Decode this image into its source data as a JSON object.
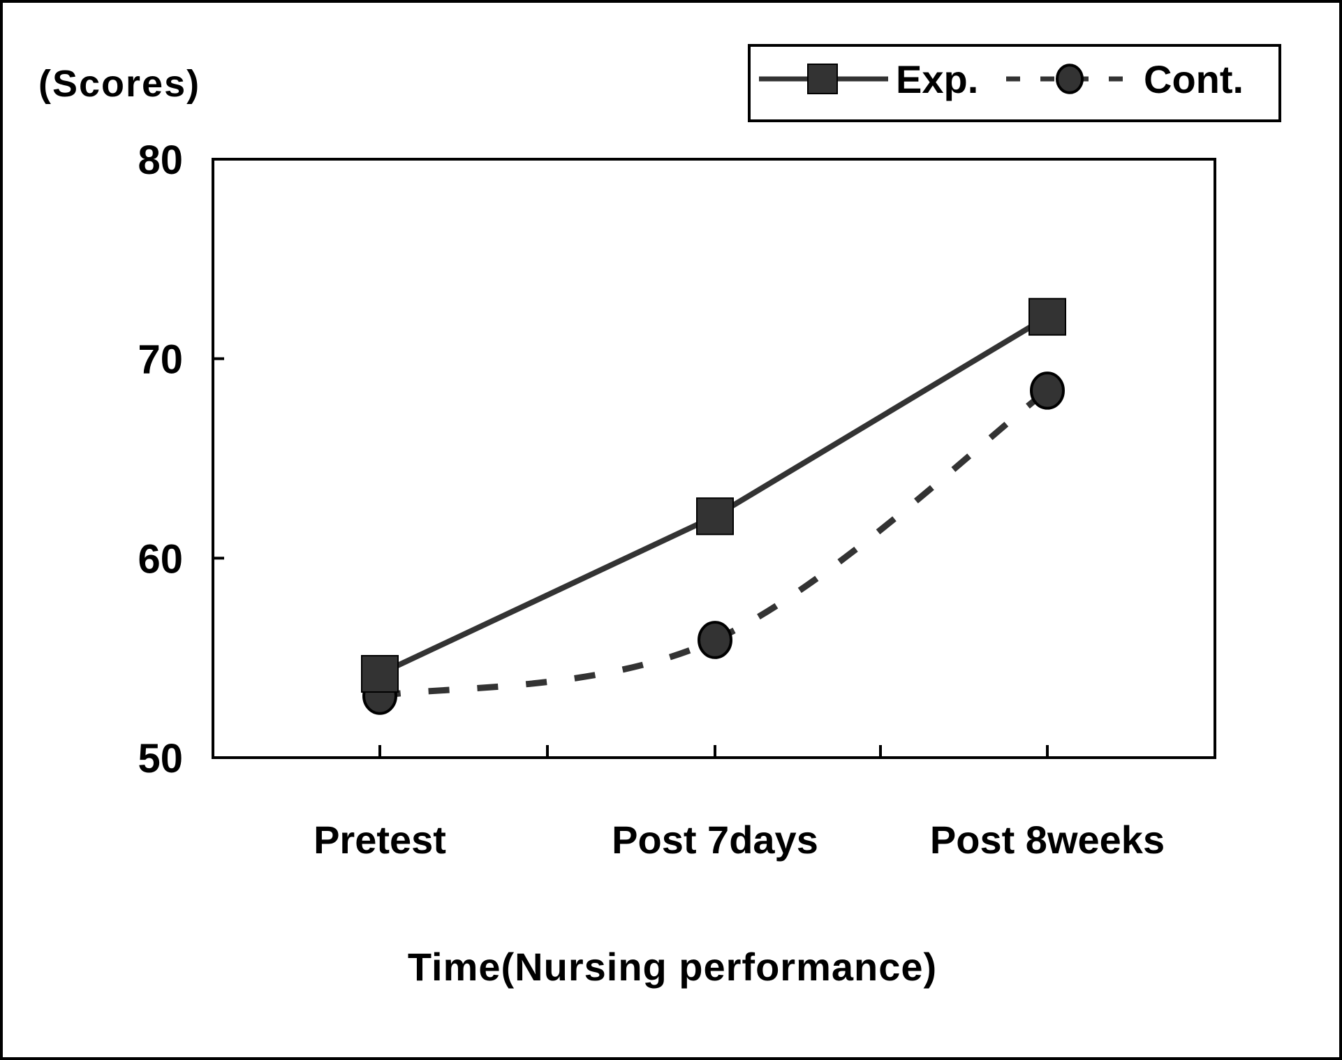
{
  "chart_data": {
    "type": "line",
    "title": "",
    "ylabel": "(Scores)",
    "xlabel": "Time(Nursing performance)",
    "categories": [
      "Pretest",
      "Post 7days",
      "Post 8weeks"
    ],
    "ylim": [
      50,
      80
    ],
    "yticks": [
      "50",
      "60",
      "70",
      "80"
    ],
    "grid": false,
    "legend_placement": "top-right",
    "series": [
      {
        "name": "Exp.",
        "values": [
          54.2,
          62.1,
          72.1
        ],
        "line_style": "solid",
        "marker": "square",
        "color": "#333333"
      },
      {
        "name": "Cont.",
        "values": [
          53.1,
          55.9,
          68.4
        ],
        "line_style": "dashed",
        "marker": "circle",
        "color": "#333333"
      }
    ]
  }
}
